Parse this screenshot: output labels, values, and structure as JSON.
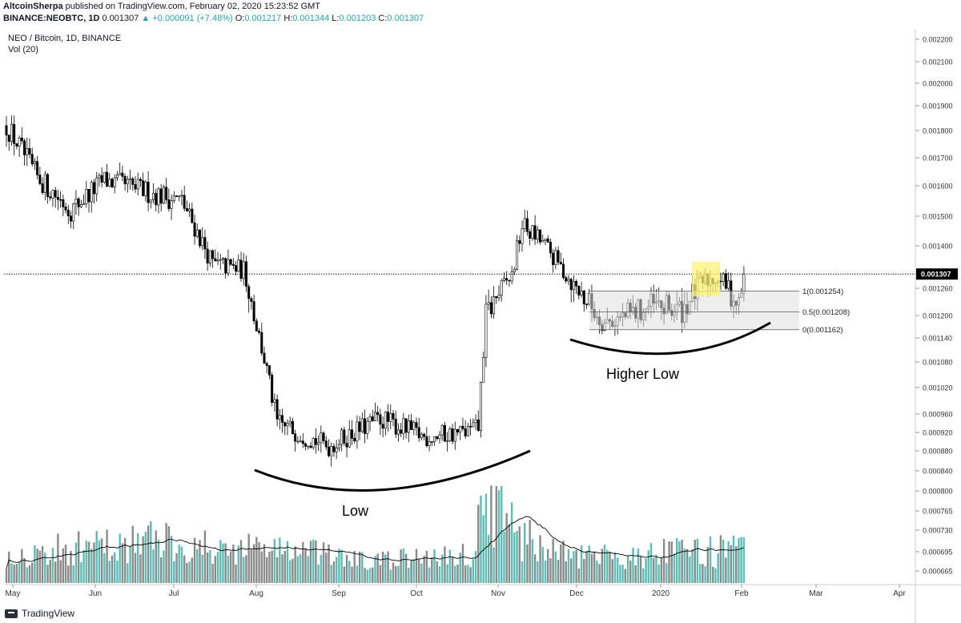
{
  "header": {
    "author": "AltcoinSherpa",
    "published_text": "published on TradingView.com, February 02, 2020 15:23:52 GMT",
    "symbol": "BINANCE:NEOBTC, 1D",
    "last": "0.001307",
    "change_text": "▲ +0.000091 (+7.48%)",
    "o_label": "O:",
    "o_value": "0.001217",
    "h_label": "H:",
    "h_value": "0.001344",
    "l_label": "L:",
    "l_value": "0.001203",
    "c_label": "C:",
    "c_value": "0.001307"
  },
  "chart_title": "NEO / Bitcoin, 1D, BINANCE",
  "volume_label": "Vol (20)",
  "annotations": {
    "low": "Low",
    "higher_low": "Higher Low"
  },
  "footer": {
    "brand": "TradingView"
  },
  "colors": {
    "up": "#26a69a",
    "down": "#000000",
    "vol_up": "#5cbdb5",
    "vol_down": "#8a8a8a",
    "highlight": "#fff176",
    "range_fill": "#e0e0e0"
  },
  "chart_data": {
    "type": "candlestick",
    "x_ticks": [
      "May",
      "Jun",
      "Jul",
      "Aug",
      "Sep",
      "Oct",
      "Nov",
      "Dec",
      "2020",
      "Feb",
      "Mar",
      "Apr"
    ],
    "y_ticks": [
      "0.002200",
      "0.002100",
      "0.002000",
      "0.001900",
      "0.001800",
      "0.001700",
      "0.001600",
      "0.001500",
      "0.001400",
      "0.001260",
      "0.001200",
      "0.001140",
      "0.001080",
      "0.001020",
      "0.000960",
      "0.000920",
      "0.000880",
      "0.000840",
      "0.000800",
      "0.000765",
      "0.000730",
      "0.000695",
      "0.000665"
    ],
    "current_price": "0.001307",
    "price_anchors": [
      [
        0,
        0.00182
      ],
      [
        12,
        0.00163
      ],
      [
        25,
        0.00152
      ],
      [
        38,
        0.00162
      ],
      [
        55,
        0.00158
      ],
      [
        68,
        0.00155
      ],
      [
        80,
        0.00134
      ],
      [
        92,
        0.00132
      ],
      [
        105,
        0.00094
      ],
      [
        125,
        0.00089
      ],
      [
        145,
        0.00095
      ],
      [
        162,
        0.00091
      ],
      [
        178,
        0.00092
      ],
      [
        183,
        0.00093
      ],
      [
        186,
        0.0012
      ],
      [
        196,
        0.0013
      ],
      [
        200,
        0.00147
      ],
      [
        208,
        0.00141
      ],
      [
        220,
        0.00127
      ],
      [
        232,
        0.00118
      ],
      [
        250,
        0.00122
      ],
      [
        262,
        0.00121
      ],
      [
        270,
        0.00128
      ],
      [
        276,
        0.0013
      ],
      [
        284,
        0.00122
      ],
      [
        286,
        0.0013
      ]
    ],
    "volume_anchors": [
      [
        0,
        0.35
      ],
      [
        40,
        0.45
      ],
      [
        60,
        0.55
      ],
      [
        80,
        0.4
      ],
      [
        100,
        0.45
      ],
      [
        140,
        0.25
      ],
      [
        180,
        0.35
      ],
      [
        186,
        1.0
      ],
      [
        200,
        0.55
      ],
      [
        220,
        0.3
      ],
      [
        286,
        0.4
      ]
    ],
    "fib_levels": [
      {
        "ratio": "1",
        "value": 0.001254,
        "label": "1(0.001254)"
      },
      {
        "ratio": "0.5",
        "value": 0.001208,
        "label": "0.5(0.001208)"
      },
      {
        "ratio": "0",
        "value": 0.001162,
        "label": "0(0.001162)"
      }
    ]
  }
}
